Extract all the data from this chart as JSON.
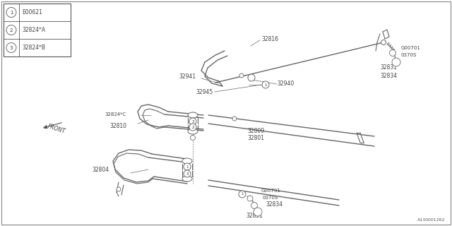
{
  "bg_color": "#ffffff",
  "line_color": "#555555",
  "watermark": "A130001262",
  "legend": [
    {
      "num": "1",
      "label": "E00621"
    },
    {
      "num": "2",
      "label": "32824*A"
    },
    {
      "num": "3",
      "label": "32824*B"
    }
  ]
}
